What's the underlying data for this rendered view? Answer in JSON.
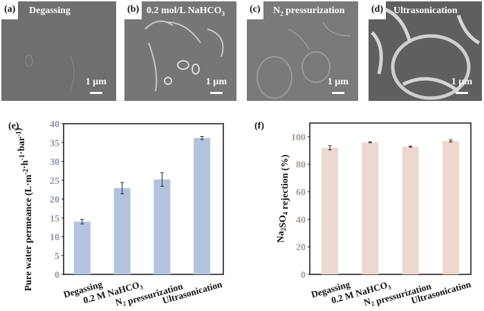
{
  "panels": [
    {
      "label": "(a)",
      "title": "Degassing",
      "scale": "1 µm"
    },
    {
      "label": "(b)",
      "title": "0.2 mol/L NaHCO",
      "title_sub": "3",
      "scale": "1 µm"
    },
    {
      "label": "(c)",
      "title": "N",
      "title_sub": "2",
      "title_rest": " pressurization",
      "scale": "1 µm"
    },
    {
      "label": "(d)",
      "title": "Ultrasonication",
      "scale": "1 µm"
    }
  ],
  "chart_data": [
    {
      "panel": "(e)",
      "type": "bar",
      "categories": [
        "Degassing",
        "0.2 M NaHCO3",
        "N2 pressurization",
        "Ultrasonication"
      ],
      "values": [
        14.0,
        22.9,
        25.2,
        36.2
      ],
      "errors": [
        0.6,
        1.5,
        1.8,
        0.4
      ],
      "ylabel": "Pure water permeance (L·m-2·h-1·bar-1)",
      "ylim": [
        0,
        40
      ],
      "yticks": [
        0,
        5,
        10,
        15,
        20,
        25,
        30,
        35,
        40
      ],
      "color": "#b4c3dd",
      "tick_color": "#8a94a8"
    },
    {
      "panel": "(f)",
      "type": "bar",
      "categories": [
        "Degassing",
        "0.2 M NaHCO3",
        "N2 pressurization",
        "Ultrasonication"
      ],
      "values": [
        92.0,
        96.0,
        92.8,
        97.0
      ],
      "errors": [
        1.5,
        0.4,
        0.4,
        0.8
      ],
      "ylabel": "Na2SO4 rejection (%)",
      "ylim": [
        0,
        110
      ],
      "yticks": [
        0,
        20,
        40,
        60,
        80,
        100
      ],
      "color": "#ecd8cf",
      "tick_color": "#a89a94"
    }
  ]
}
